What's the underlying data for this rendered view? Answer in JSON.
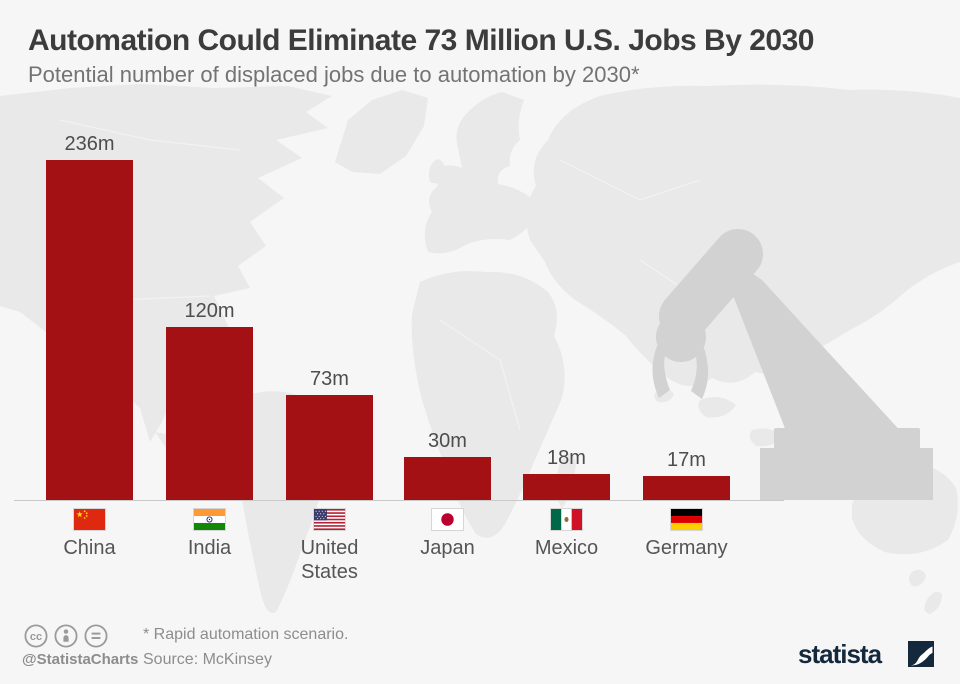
{
  "header": {
    "title": "Automation Could Eliminate 73 Million U.S. Jobs By 2030",
    "subtitle": "Potential number of displaced jobs due to automation by 2030*"
  },
  "chart_data": {
    "type": "bar",
    "title": "Automation Could Eliminate 73 Million U.S. Jobs By 2030",
    "subtitle": "Potential number of displaced jobs due to automation by 2030*",
    "categories": [
      "China",
      "India",
      "United States",
      "Japan",
      "Mexico",
      "Germany"
    ],
    "values": [
      236,
      120,
      73,
      30,
      18,
      17
    ],
    "unit": "m",
    "value_labels": [
      "236m",
      "120m",
      "73m",
      "30m",
      "18m",
      "17m"
    ],
    "bar_color": "#a41114",
    "ylim": [
      0,
      236
    ],
    "grid": false,
    "legend": false,
    "flag_icons": [
      "china-flag-icon",
      "india-flag-icon",
      "us-flag-icon",
      "japan-flag-icon",
      "mexico-flag-icon",
      "germany-flag-icon"
    ]
  },
  "background_art": {
    "world_map": "world-map-silhouette",
    "overlay": "robot-arm-silhouette",
    "map_color": "#e9e9e9",
    "robot_color": "#d2d2d2"
  },
  "footer": {
    "license_icons": [
      "cc-icon",
      "attribution-icon",
      "no-derivatives-icon"
    ],
    "handle": "@StatistaCharts",
    "note": "* Rapid automation scenario.",
    "source": "Source: McKinsey",
    "brand": "statista",
    "brand_color": "#15293d"
  }
}
